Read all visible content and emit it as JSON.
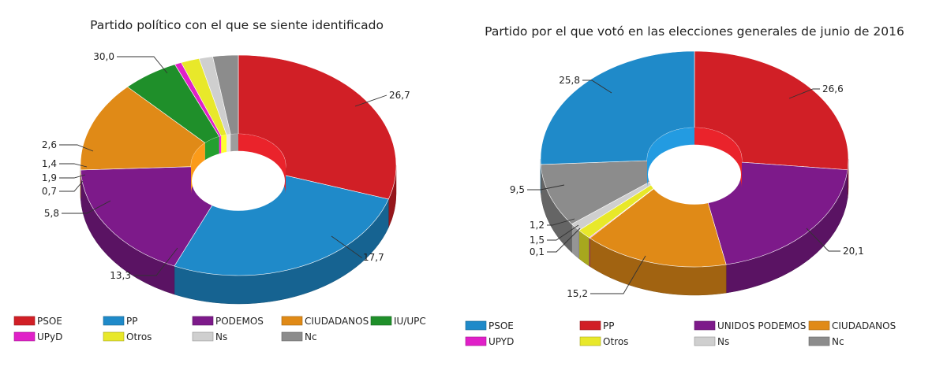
{
  "chart_data": [
    {
      "type": "pie",
      "variant": "3d-donut",
      "title": "Partido político con el que se siente identificado",
      "legend_position": "bottom",
      "slices": [
        {
          "label": "PSOE",
          "value": 30.0,
          "value_label": "30,0",
          "color": "#d11f26"
        },
        {
          "label": "PP",
          "value": 26.7,
          "value_label": "26,7",
          "color": "#1f8ac9"
        },
        {
          "label": "PODEMOS",
          "value": 17.7,
          "value_label": "17,7",
          "color": "#7d1a8a"
        },
        {
          "label": "CIUDADANOS",
          "value": 13.3,
          "value_label": "13,3",
          "color": "#e08a17"
        },
        {
          "label": "IU/UPC",
          "value": 5.8,
          "value_label": "5,8",
          "color": "#1f8f2a"
        },
        {
          "label": "UPyD",
          "value": 0.7,
          "value_label": "0,7",
          "color": "#e020c8"
        },
        {
          "label": "Otros",
          "value": 1.9,
          "value_label": "1,9",
          "color": "#e8e82a"
        },
        {
          "label": "Ns",
          "value": 1.4,
          "value_label": "1,4",
          "color": "#cfcfcf"
        },
        {
          "label": "Nc",
          "value": 2.6,
          "value_label": "2,6",
          "color": "#8c8c8c"
        }
      ],
      "legend": [
        {
          "label": "PSOE",
          "color": "#d11f26"
        },
        {
          "label": "PP",
          "color": "#1f8ac9"
        },
        {
          "label": "PODEMOS",
          "color": "#7d1a8a"
        },
        {
          "label": "CIUDADANOS",
          "color": "#e08a17"
        },
        {
          "label": "IU/UPC",
          "color": "#1f8f2a"
        },
        {
          "label": "UPyD",
          "color": "#e020c8"
        },
        {
          "label": "Otros",
          "color": "#e8e82a"
        },
        {
          "label": "Ns",
          "color": "#cfcfcf"
        },
        {
          "label": "Nc",
          "color": "#8c8c8c"
        }
      ]
    },
    {
      "type": "pie",
      "variant": "3d-donut",
      "title": "Partido por el que votó en las elecciones generales de junio de 2016",
      "legend_position": "bottom",
      "slices": [
        {
          "label": "PP",
          "value": 26.6,
          "value_label": "26,6",
          "color": "#d11f26"
        },
        {
          "label": "UNIDOS PODEMOS",
          "value": 20.1,
          "value_label": "20,1",
          "color": "#7d1a8a"
        },
        {
          "label": "CIUDADANOS",
          "value": 15.2,
          "value_label": "15,2",
          "color": "#e08a17"
        },
        {
          "label": "UPYD",
          "value": 0.1,
          "value_label": "0,1",
          "color": "#e020c8"
        },
        {
          "label": "Otros",
          "value": 1.5,
          "value_label": "1,5",
          "color": "#e8e82a"
        },
        {
          "label": "Ns",
          "value": 1.2,
          "value_label": "1,2",
          "color": "#cfcfcf"
        },
        {
          "label": "Nc",
          "value": 9.5,
          "value_label": "9,5",
          "color": "#8c8c8c"
        },
        {
          "label": "PSOE",
          "value": 25.8,
          "value_label": "25,8",
          "color": "#1f8ac9"
        }
      ],
      "legend": [
        {
          "label": "PSOE",
          "color": "#1f8ac9"
        },
        {
          "label": "PP",
          "color": "#d11f26"
        },
        {
          "label": "UNIDOS PODEMOS",
          "color": "#7d1a8a"
        },
        {
          "label": "CIUDADANOS",
          "color": "#e08a17"
        },
        {
          "label": "UPYD",
          "color": "#e020c8"
        },
        {
          "label": "Otros",
          "color": "#e8e82a"
        },
        {
          "label": "Ns",
          "color": "#cfcfcf"
        },
        {
          "label": "Nc",
          "color": "#8c8c8c"
        }
      ]
    }
  ]
}
